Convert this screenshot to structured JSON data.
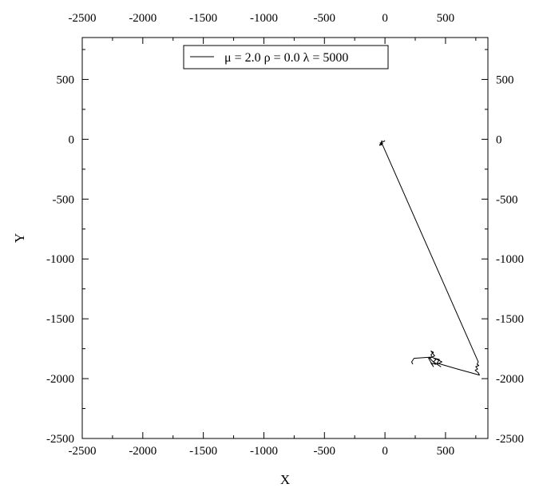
{
  "chart_data": {
    "type": "line",
    "xlabel": "X",
    "ylabel": "Y",
    "xlim": [
      -2500,
      850
    ],
    "ylim": [
      -2500,
      850
    ],
    "xticks": [
      -2500,
      -2000,
      -1500,
      -1000,
      -500,
      0,
      500
    ],
    "yticks": [
      -2500,
      -2000,
      -1500,
      -1000,
      -500,
      0,
      500
    ],
    "xtick_labels": [
      "-2500",
      "-2000",
      "-1500",
      "-1000",
      "-500",
      "0",
      "500"
    ],
    "ytick_labels": [
      "-2500",
      "-2000",
      "-1500",
      "-1000",
      "-500",
      "0",
      "500"
    ],
    "minor_tick_step": 250,
    "mirror_axes": true,
    "grid": false,
    "legend": {
      "position": "top-center",
      "entries": [
        "μ = 2.0 ρ = 0.0 λ = 5000"
      ]
    },
    "series": [
      {
        "name": "μ = 2.0 ρ = 0.0 λ = 5000",
        "color": "#000000",
        "x": [
          0,
          -10,
          -30,
          -20,
          -40,
          -25,
          -45,
          -30,
          770,
          760,
          775,
          750,
          765,
          745,
          770,
          780,
          600,
          430,
          450,
          410,
          470,
          430,
          460,
          400,
          420,
          390,
          380,
          400,
          380,
          410,
          370,
          390,
          420,
          380,
          400,
          360,
          380,
          240,
          220,
          230
        ],
        "y": [
          -10,
          -20,
          -15,
          -35,
          -30,
          -45,
          -50,
          -25,
          -1860,
          -1880,
          -1890,
          -1900,
          -1920,
          -1930,
          -1950,
          -1970,
          -1920,
          -1870,
          -1840,
          -1830,
          -1860,
          -1880,
          -1900,
          -1860,
          -1840,
          -1820,
          -1800,
          -1780,
          -1770,
          -1810,
          -1830,
          -1850,
          -1880,
          -1870,
          -1900,
          -1830,
          -1820,
          -1830,
          -1860,
          -1880
        ]
      }
    ]
  }
}
